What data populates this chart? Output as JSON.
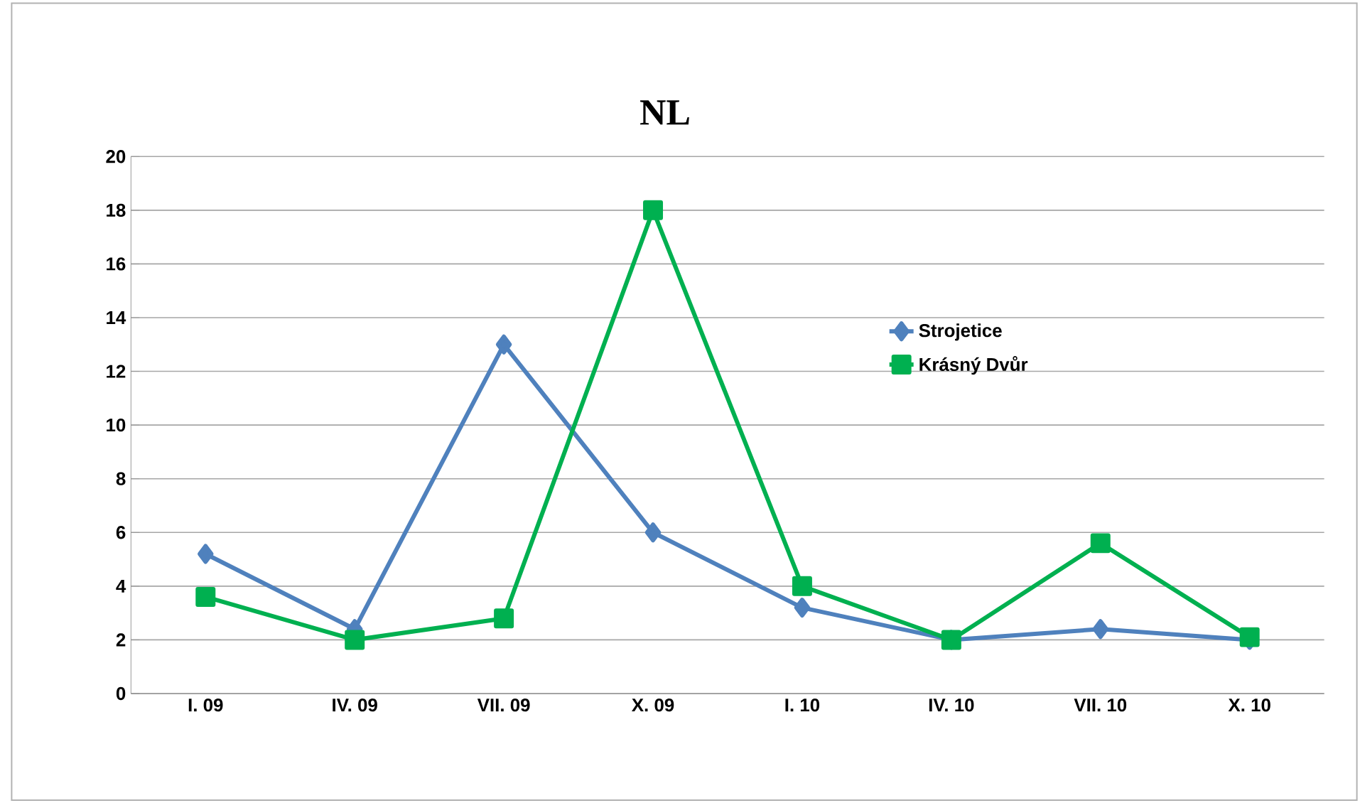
{
  "chart_data": {
    "type": "line",
    "title": "NL",
    "categories": [
      "I. 09",
      "IV. 09",
      "VII. 09",
      "X. 09",
      "I. 10",
      "IV. 10",
      "VII. 10",
      "X. 10"
    ],
    "series": [
      {
        "name": "Strojetice",
        "color": "#4f81bd",
        "marker": "diamond",
        "values": [
          5.2,
          2.4,
          13,
          6,
          3.2,
          2,
          2.4,
          2
        ]
      },
      {
        "name": "Krásný Dvůr",
        "color": "#00b050",
        "marker": "square",
        "values": [
          3.6,
          2,
          2.8,
          18,
          4,
          2,
          5.6,
          2.1
        ]
      }
    ],
    "ylim": [
      0,
      20
    ],
    "yticks": [
      0,
      2,
      4,
      6,
      8,
      10,
      12,
      14,
      16,
      18,
      20
    ],
    "grid": "y",
    "legend": "right"
  }
}
